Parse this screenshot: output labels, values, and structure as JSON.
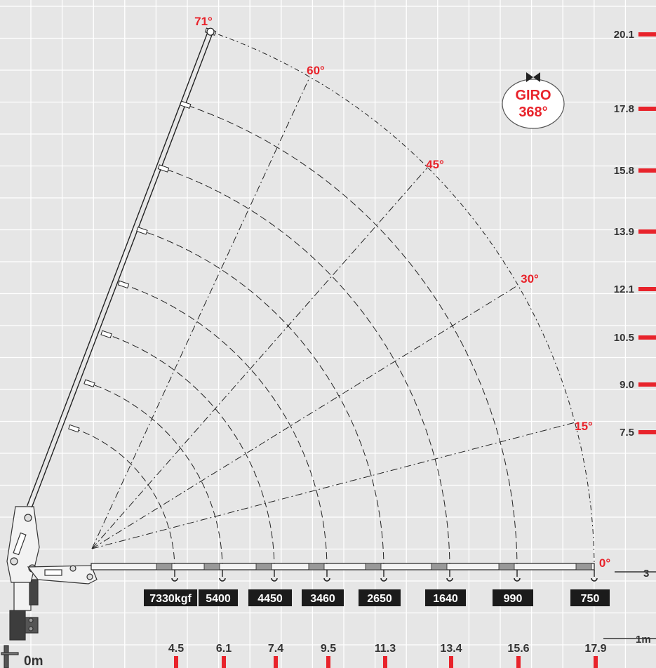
{
  "angles": [
    {
      "label": "71°",
      "deg": 71
    },
    {
      "label": "60°",
      "deg": 60
    },
    {
      "label": "45°",
      "deg": 45
    },
    {
      "label": "30°",
      "deg": 30
    },
    {
      "label": "15°",
      "deg": 15
    },
    {
      "label": "0°",
      "deg": 0
    }
  ],
  "giro": {
    "line1": "GIRO",
    "line2": "368°"
  },
  "heights": [
    "20.1",
    "17.8",
    "15.8",
    "13.9",
    "12.1",
    "10.5",
    "9.0",
    "7.5"
  ],
  "capacities": [
    "7330kgf",
    "5400",
    "4450",
    "3460",
    "2650",
    "1640",
    "990",
    "750"
  ],
  "reaches": [
    "4.5",
    "6.1",
    "7.4",
    "9.5",
    "11.3",
    "13.4",
    "15.6",
    "17.9"
  ],
  "ground_label": "0m",
  "side_mark_3": "3",
  "side_mark_1m": "1m",
  "colors": {
    "accent": "#e8232b",
    "background": "#e6e6e6",
    "grid": "#ffffff",
    "ink": "#333333",
    "badge": "#1b1b1b"
  }
}
